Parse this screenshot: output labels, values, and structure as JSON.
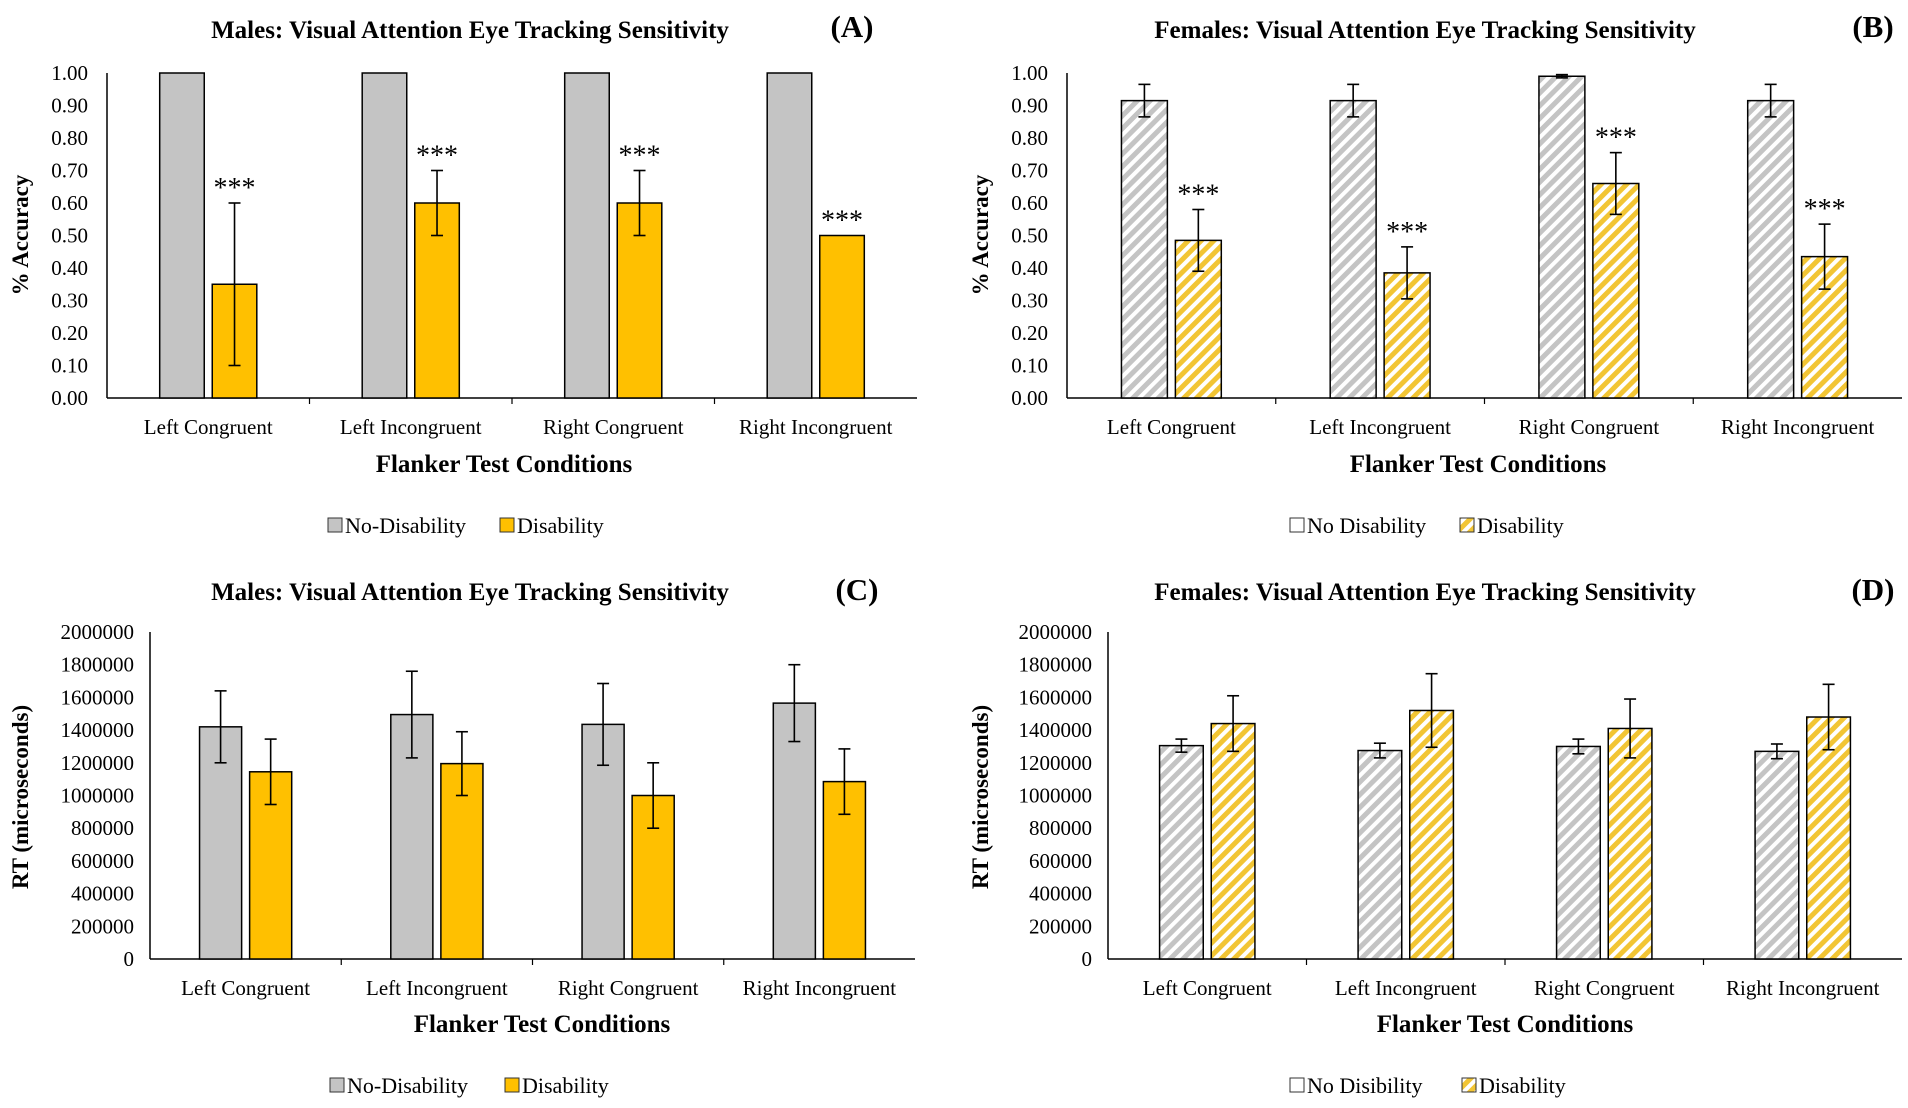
{
  "colors": {
    "no_disability": "#c4c4c4",
    "disability": "#ffc000",
    "bar_outline": "#000000"
  },
  "chart_data": [
    {
      "id": "A",
      "type": "bar",
      "title": "Males: Visual Attention Eye Tracking Sensitivity",
      "panel_label": "(A)",
      "xlabel": "Flanker Test Conditions",
      "ylabel": "% Accuracy",
      "ylim": [
        0,
        1
      ],
      "yticks": [
        "0.00",
        "0.10",
        "0.20",
        "0.30",
        "0.40",
        "0.50",
        "0.60",
        "0.70",
        "0.80",
        "0.90",
        "1.00"
      ],
      "categories": [
        "Left Congruent",
        "Left Incongruent",
        "Right Congruent",
        "Right Incongruent"
      ],
      "pattern": "solid",
      "legend": "bottom-center",
      "series": [
        {
          "name": "No-Disability",
          "values": [
            1.0,
            1.0,
            1.0,
            1.0
          ],
          "errors": [
            null,
            null,
            null,
            null
          ]
        },
        {
          "name": "Disability",
          "values": [
            0.35,
            0.6,
            0.6,
            0.5
          ],
          "errors": [
            0.25,
            0.1,
            0.1,
            null
          ]
        }
      ],
      "annotations": [
        {
          "category": 0,
          "series": 1,
          "text": "***"
        },
        {
          "category": 1,
          "series": 1,
          "text": "***"
        },
        {
          "category": 2,
          "series": 1,
          "text": "***"
        },
        {
          "category": 3,
          "series": 1,
          "text": "***"
        }
      ]
    },
    {
      "id": "B",
      "type": "bar",
      "title": "Females:  Visual Attention Eye Tracking Sensitivity",
      "panel_label": "(B)",
      "xlabel": "Flanker Test Conditions",
      "ylabel": "% Accuracy",
      "ylim": [
        0,
        1
      ],
      "yticks": [
        "0.00",
        "0.10",
        "0.20",
        "0.30",
        "0.40",
        "0.50",
        "0.60",
        "0.70",
        "0.80",
        "0.90",
        "1.00"
      ],
      "categories": [
        "Left Congruent",
        "Left Incongruent",
        "Right Congruent",
        "Right Incongruent"
      ],
      "pattern": "striped",
      "legend": "bottom-center",
      "series": [
        {
          "name": "No Disability",
          "values": [
            0.915,
            0.915,
            0.99,
            0.915
          ],
          "errors": [
            0.05,
            0.05,
            0.005,
            0.05
          ]
        },
        {
          "name": "Disability",
          "values": [
            0.485,
            0.385,
            0.66,
            0.435
          ],
          "errors": [
            0.095,
            0.08,
            0.095,
            0.1
          ]
        }
      ],
      "annotations": [
        {
          "category": 0,
          "series": 1,
          "text": "***"
        },
        {
          "category": 1,
          "series": 1,
          "text": "***"
        },
        {
          "category": 2,
          "series": 1,
          "text": "***"
        },
        {
          "category": 3,
          "series": 1,
          "text": "***"
        }
      ]
    },
    {
      "id": "C",
      "type": "bar",
      "title": "Males: Visual Attention Eye Tracking Sensitivity",
      "panel_label": "(C)",
      "xlabel": "Flanker Test Conditions",
      "ylabel": "RT (microseconds)",
      "ylim": [
        0,
        2000000
      ],
      "yticks": [
        "0",
        "200000",
        "400000",
        "600000",
        "800000",
        "1000000",
        "1200000",
        "1400000",
        "1600000",
        "1800000",
        "2000000"
      ],
      "categories": [
        "Left Congruent",
        "Left Incongruent",
        "Right Congruent",
        "Right Incongruent"
      ],
      "pattern": "solid",
      "legend": "bottom-center",
      "series": [
        {
          "name": "No-Disability",
          "values": [
            1420000,
            1495000,
            1435000,
            1565000
          ],
          "errors": [
            220000,
            265000,
            250000,
            235000
          ]
        },
        {
          "name": "Disability",
          "values": [
            1145000,
            1195000,
            1000000,
            1085000
          ],
          "errors": [
            200000,
            195000,
            200000,
            200000
          ]
        }
      ],
      "annotations": []
    },
    {
      "id": "D",
      "type": "bar",
      "title": "Females: Visual Attention Eye Tracking Sensitivity",
      "panel_label": "(D)",
      "xlabel": "Flanker Test Conditions",
      "ylabel": "RT (microseconds)",
      "ylim": [
        0,
        2000000
      ],
      "yticks": [
        "0",
        "200000",
        "400000",
        "600000",
        "800000",
        "1000000",
        "1200000",
        "1400000",
        "1600000",
        "1800000",
        "2000000"
      ],
      "categories": [
        "Left Congruent",
        "Left Incongruent",
        "Right Congruent",
        "Right Incongruent"
      ],
      "pattern": "striped",
      "legend": "bottom-center",
      "series": [
        {
          "name": "No Disibility",
          "values": [
            1305000,
            1275000,
            1300000,
            1270000
          ],
          "errors": [
            40000,
            45000,
            45000,
            45000
          ]
        },
        {
          "name": "Disability",
          "values": [
            1440000,
            1520000,
            1410000,
            1480000
          ],
          "errors": [
            170000,
            225000,
            180000,
            200000
          ]
        }
      ],
      "annotations": []
    }
  ]
}
